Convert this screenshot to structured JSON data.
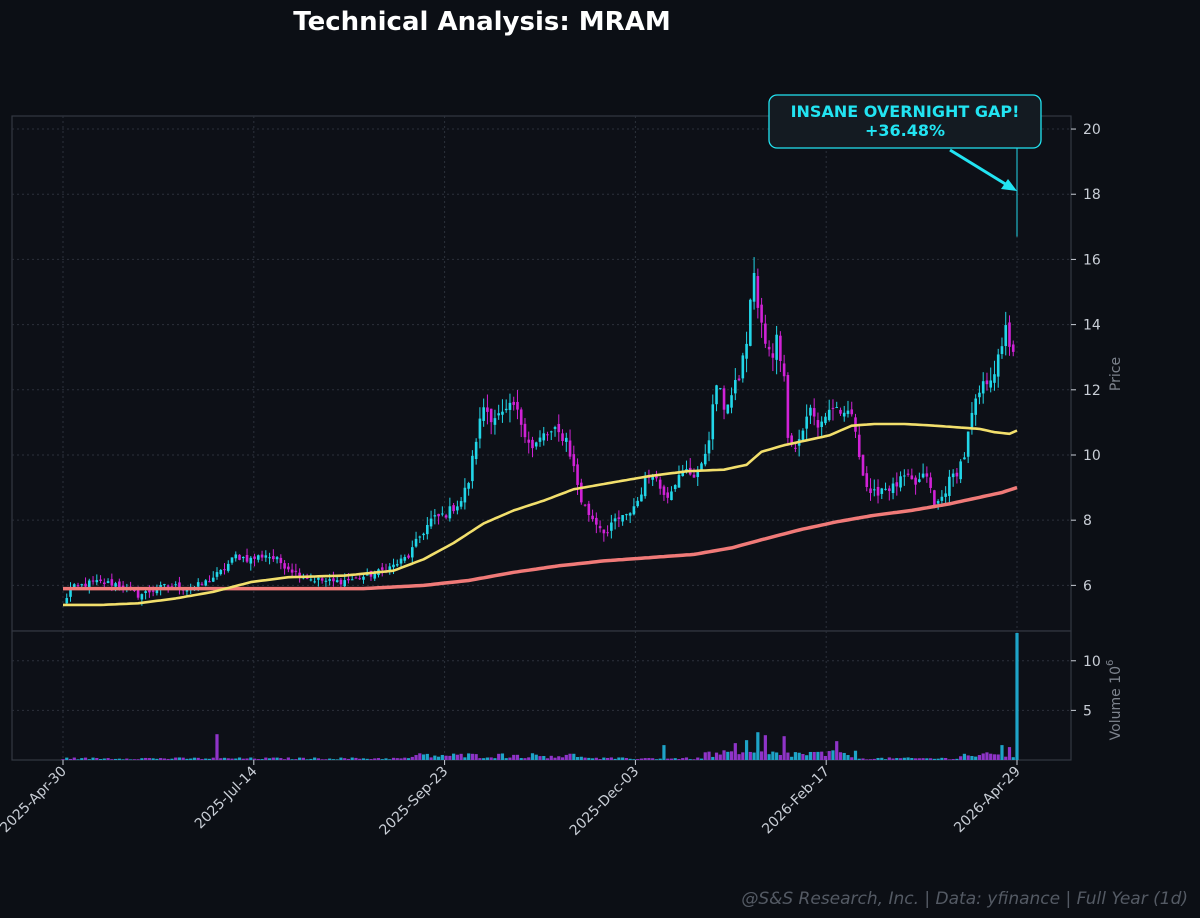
{
  "chart_data": {
    "type": "candlestick",
    "title": "Technical Analysis: MRAM",
    "footer": "@S&S Research, Inc. | Data: yfinance | Full Year (1d)",
    "price_panel": {
      "ylabel": "Price",
      "yticks": [
        6,
        8,
        10,
        12,
        14,
        16,
        18,
        20
      ],
      "ylim": [
        4.6,
        20.4
      ],
      "grid": true
    },
    "volume_panel": {
      "ylabel": "Volume",
      "ylabel_exp": "6",
      "ylabel_base": "10",
      "yticks": [
        5,
        10
      ],
      "ylim": [
        0,
        13
      ],
      "grid": true
    },
    "xticks": [
      "2025-Apr-30",
      "2025-Jul-14",
      "2025-Sep-23",
      "2025-Dec-03",
      "2026-Feb-17",
      "2026-Apr-29"
    ],
    "colors": {
      "background": "#0c0f15",
      "up": "#22d6e8",
      "down": "#d022d6",
      "vol_up": "#1ea4c8",
      "vol_down": "#8f34c8",
      "ma_fast": "#f2df6c",
      "ma_slow": "#f07a78",
      "annotation": "#22e4f2"
    },
    "close_anchors": [
      [
        0,
        5.4
      ],
      [
        2,
        5.9
      ],
      [
        8,
        6.1
      ],
      [
        14,
        6.05
      ],
      [
        20,
        5.7
      ],
      [
        28,
        6.0
      ],
      [
        34,
        5.9
      ],
      [
        38,
        6.1
      ],
      [
        42,
        6.4
      ],
      [
        46,
        6.9
      ],
      [
        50,
        6.8
      ],
      [
        54,
        6.95
      ],
      [
        58,
        6.7
      ],
      [
        62,
        6.4
      ],
      [
        66,
        6.2
      ],
      [
        72,
        6.1
      ],
      [
        78,
        6.2
      ],
      [
        84,
        6.4
      ],
      [
        88,
        6.6
      ],
      [
        92,
        6.9
      ],
      [
        95,
        7.5
      ],
      [
        98,
        8.0
      ],
      [
        102,
        8.2
      ],
      [
        106,
        8.6
      ],
      [
        108,
        9.2
      ],
      [
        110,
        10.5
      ],
      [
        112,
        11.5
      ],
      [
        114,
        11.2
      ],
      [
        117,
        11.2
      ],
      [
        120,
        11.5
      ],
      [
        122,
        11.0
      ],
      [
        125,
        10.2
      ],
      [
        128,
        10.6
      ],
      [
        131,
        10.7
      ],
      [
        134,
        10.5
      ],
      [
        136,
        9.6
      ],
      [
        138,
        8.6
      ],
      [
        140,
        8.2
      ],
      [
        143,
        7.8
      ],
      [
        145,
        7.6
      ],
      [
        147,
        8.0
      ],
      [
        150,
        8.1
      ],
      [
        153,
        8.6
      ],
      [
        155,
        9.2
      ],
      [
        157,
        9.5
      ],
      [
        159,
        9.0
      ],
      [
        161,
        8.8
      ],
      [
        163,
        9.2
      ],
      [
        166,
        9.5
      ],
      [
        168,
        9.4
      ],
      [
        170,
        9.6
      ],
      [
        172,
        10.6
      ],
      [
        174,
        12.2
      ],
      [
        176,
        11.5
      ],
      [
        178,
        11.8
      ],
      [
        180,
        12.4
      ],
      [
        182,
        13.5
      ],
      [
        184,
        15.7
      ],
      [
        185,
        14.5
      ],
      [
        187,
        13.4
      ],
      [
        189,
        12.9
      ],
      [
        190,
        13.8
      ],
      [
        192,
        12.3
      ],
      [
        193,
        10.7
      ],
      [
        195,
        10.2
      ],
      [
        197,
        10.8
      ],
      [
        199,
        11.4
      ],
      [
        201,
        10.9
      ],
      [
        203,
        11.2
      ],
      [
        205,
        11.5
      ],
      [
        207,
        11.1
      ],
      [
        209,
        11.4
      ],
      [
        211,
        10.8
      ],
      [
        213,
        9.4
      ],
      [
        215,
        8.7
      ],
      [
        218,
        9.0
      ],
      [
        221,
        9.0
      ],
      [
        224,
        9.3
      ],
      [
        227,
        9.1
      ],
      [
        230,
        9.4
      ],
      [
        232,
        8.4
      ],
      [
        234,
        8.7
      ],
      [
        236,
        9.2
      ],
      [
        238,
        9.5
      ],
      [
        240,
        10.0
      ],
      [
        242,
        11.2
      ],
      [
        244,
        11.9
      ],
      [
        246,
        12.3
      ],
      [
        248,
        12.6
      ],
      [
        250,
        13.2
      ],
      [
        251,
        14.1
      ],
      [
        252,
        13.4
      ],
      [
        253,
        13.0
      ],
      [
        254,
        17.3
      ]
    ],
    "gap_day": 254,
    "gap_bar": {
      "low": 16.7,
      "high": 19.9
    },
    "ma_fast": {
      "anchors": [
        [
          0,
          5.4
        ],
        [
          10,
          5.4
        ],
        [
          20,
          5.45
        ],
        [
          30,
          5.6
        ],
        [
          40,
          5.8
        ],
        [
          50,
          6.1
        ],
        [
          60,
          6.25
        ],
        [
          75,
          6.3
        ],
        [
          88,
          6.45
        ],
        [
          96,
          6.8
        ],
        [
          104,
          7.3
        ],
        [
          112,
          7.9
        ],
        [
          120,
          8.3
        ],
        [
          128,
          8.6
        ],
        [
          136,
          8.95
        ],
        [
          146,
          9.15
        ],
        [
          156,
          9.35
        ],
        [
          166,
          9.5
        ],
        [
          176,
          9.55
        ],
        [
          182,
          9.7
        ],
        [
          186,
          10.1
        ],
        [
          192,
          10.3
        ],
        [
          198,
          10.45
        ],
        [
          204,
          10.6
        ],
        [
          210,
          10.9
        ],
        [
          216,
          10.95
        ],
        [
          224,
          10.95
        ],
        [
          232,
          10.9
        ],
        [
          238,
          10.85
        ],
        [
          244,
          10.8
        ],
        [
          248,
          10.7
        ],
        [
          252,
          10.65
        ],
        [
          254,
          10.75
        ]
      ]
    },
    "ma_slow": {
      "anchors": [
        [
          0,
          5.9
        ],
        [
          20,
          5.9
        ],
        [
          40,
          5.9
        ],
        [
          60,
          5.9
        ],
        [
          80,
          5.9
        ],
        [
          96,
          6.0
        ],
        [
          108,
          6.15
        ],
        [
          120,
          6.4
        ],
        [
          132,
          6.6
        ],
        [
          144,
          6.75
        ],
        [
          156,
          6.85
        ],
        [
          168,
          6.95
        ],
        [
          178,
          7.15
        ],
        [
          186,
          7.4
        ],
        [
          196,
          7.7
        ],
        [
          206,
          7.95
        ],
        [
          216,
          8.15
        ],
        [
          226,
          8.3
        ],
        [
          236,
          8.5
        ],
        [
          244,
          8.7
        ],
        [
          250,
          8.85
        ],
        [
          254,
          9.0
        ]
      ]
    },
    "volume_spikes": [
      [
        41,
        2.6,
        "down"
      ],
      [
        160,
        1.5,
        "up"
      ],
      [
        179,
        1.7,
        "down"
      ],
      [
        182,
        2.0,
        "up"
      ],
      [
        185,
        2.8,
        "up"
      ],
      [
        187,
        2.5,
        "down"
      ],
      [
        192,
        2.4,
        "down"
      ],
      [
        206,
        1.9,
        "down"
      ],
      [
        250,
        1.5,
        "up"
      ],
      [
        252,
        1.3,
        "down"
      ],
      [
        254,
        12.8,
        "up"
      ]
    ],
    "annotation": {
      "line1": "INSANE OVERNIGHT GAP!",
      "line2": "+36.48%"
    }
  }
}
